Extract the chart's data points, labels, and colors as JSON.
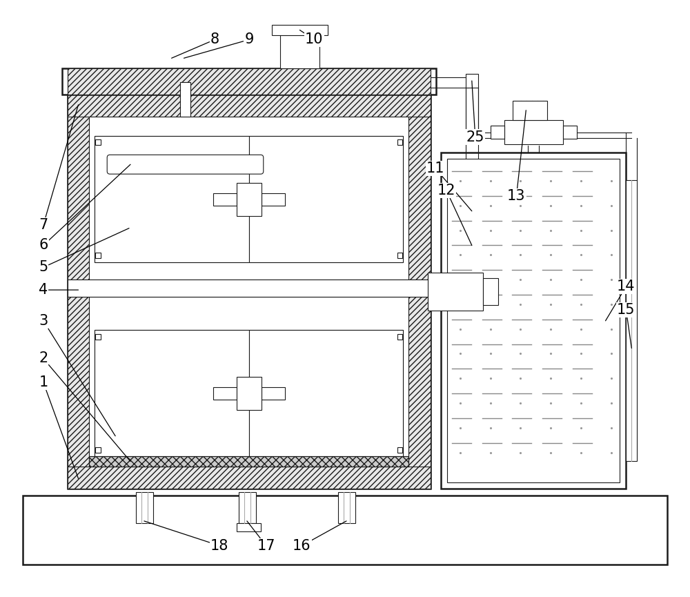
{
  "bg_color": "#ffffff",
  "line_color": "#1a1a1a",
  "font_size": 15,
  "label_color": "#000000",
  "hatch_gray": "#e0e0e0"
}
